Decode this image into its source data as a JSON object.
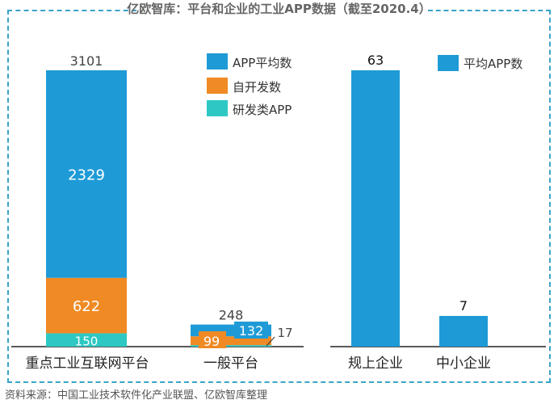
{
  "title": "亿欧智库：平台和企业的工业APP数据（截至2020.4）",
  "source": "资料来源：中国工业技术软件化产业联盟、亿欧智库整理",
  "colors": {
    "app_avg": "#1e9bd7",
    "self_dev": "#f08a24",
    "rd_app": "#2ec8c4",
    "frame": "#3aa3c9"
  },
  "chart_data": [
    {
      "type": "bar",
      "stacked": true,
      "categories": [
        "重点工业互联网平台",
        "一般平台"
      ],
      "series": [
        {
          "name": "研发类APP",
          "values": [
            150,
            17
          ]
        },
        {
          "name": "自开发数",
          "values": [
            622,
            99
          ]
        },
        {
          "name": "APP平均数",
          "values": [
            2329,
            132
          ]
        }
      ],
      "totals": [
        3101,
        248
      ],
      "legend": [
        "APP平均数",
        "自开发数",
        "研发类APP"
      ],
      "ylim": [
        0,
        3500
      ]
    },
    {
      "type": "bar",
      "categories": [
        "规上企业",
        "中小企业"
      ],
      "series": [
        {
          "name": "平均APP数",
          "values": [
            63,
            7
          ]
        }
      ],
      "legend": [
        "平均APP数"
      ],
      "ylim": [
        0,
        70
      ]
    }
  ]
}
